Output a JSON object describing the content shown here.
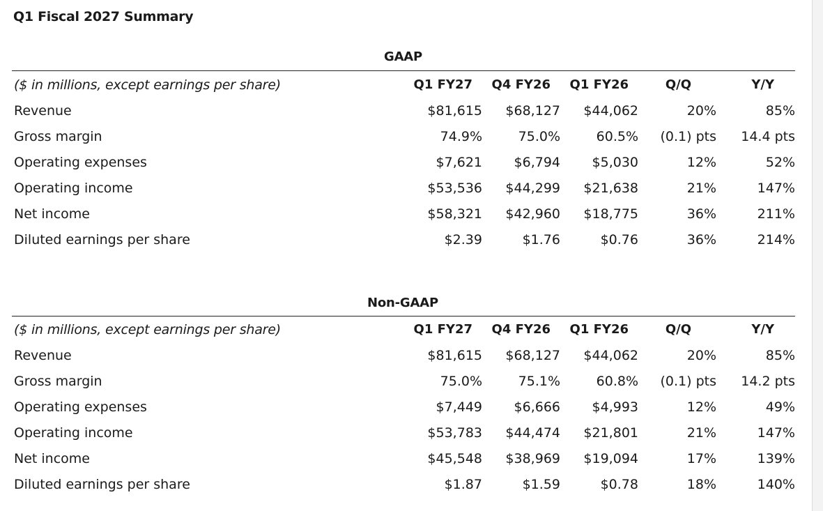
{
  "page_title": "Q1 Fiscal 2027 Summary",
  "sections": [
    {
      "title": "GAAP",
      "header": {
        "note": "($ in millions, except earnings per share)",
        "columns": [
          "Q1 FY27",
          "Q4 FY26",
          "Q1 FY26",
          "Q/Q",
          "Y/Y"
        ]
      },
      "rows": [
        {
          "label": "Revenue",
          "values": [
            "$81,615",
            "$68,127",
            "$44,062",
            "20%",
            "85%"
          ]
        },
        {
          "label": "Gross margin",
          "values": [
            "74.9%",
            "75.0%",
            "60.5%",
            "(0.1) pts",
            "14.4 pts"
          ]
        },
        {
          "label": "Operating expenses",
          "values": [
            "$7,621",
            "$6,794",
            "$5,030",
            "12%",
            "52%"
          ]
        },
        {
          "label": "Operating income",
          "values": [
            "$53,536",
            "$44,299",
            "$21,638",
            "21%",
            "147%"
          ]
        },
        {
          "label": "Net income",
          "values": [
            "$58,321",
            "$42,960",
            "$18,775",
            "36%",
            "211%"
          ]
        },
        {
          "label": "Diluted earnings per share",
          "values": [
            "$2.39",
            "$1.76",
            "$0.76",
            "36%",
            "214%"
          ]
        }
      ]
    },
    {
      "title": "Non-GAAP",
      "header": {
        "note": "($ in millions, except earnings per share)",
        "columns": [
          "Q1 FY27",
          "Q4 FY26",
          "Q1 FY26",
          "Q/Q",
          "Y/Y"
        ]
      },
      "rows": [
        {
          "label": "Revenue",
          "values": [
            "$81,615",
            "$68,127",
            "$44,062",
            "20%",
            "85%"
          ]
        },
        {
          "label": "Gross margin",
          "values": [
            "75.0%",
            "75.1%",
            "60.8%",
            "(0.1) pts",
            "14.2 pts"
          ]
        },
        {
          "label": "Operating expenses",
          "values": [
            "$7,449",
            "$6,666",
            "$4,993",
            "12%",
            "49%"
          ]
        },
        {
          "label": "Operating income",
          "values": [
            "$53,783",
            "$44,474",
            "$21,801",
            "21%",
            "147%"
          ]
        },
        {
          "label": "Net income",
          "values": [
            "$45,548",
            "$38,969",
            "$19,094",
            "17%",
            "139%"
          ]
        },
        {
          "label": "Diluted earnings per share",
          "values": [
            "$1.87",
            "$1.59",
            "$0.78",
            "18%",
            "140%"
          ]
        }
      ]
    }
  ]
}
